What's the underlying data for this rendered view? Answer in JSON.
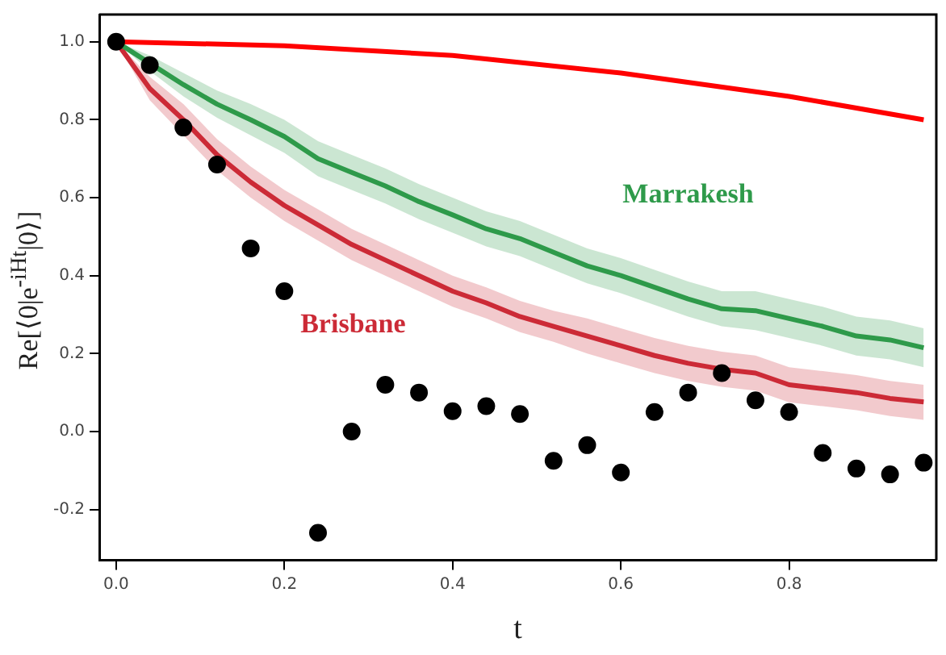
{
  "chart_data": {
    "type": "line",
    "xlabel": "t",
    "ylabel": "Re[⟨0|e$^{-iHt}$|0⟩]",
    "x": [
      0,
      0.04,
      0.08,
      0.12,
      0.16,
      0.2,
      0.24,
      0.28,
      0.32,
      0.36,
      0.4,
      0.44,
      0.48,
      0.52,
      0.56,
      0.6,
      0.64,
      0.68,
      0.72,
      0.76,
      0.8,
      0.84,
      0.88,
      0.92,
      0.96
    ],
    "series": [
      {
        "type": "line",
        "color": "#ff0000",
        "x": [
          0,
          0.2,
          0.4,
          0.6,
          0.8,
          0.96
        ],
        "values": [
          1.0,
          0.99,
          0.965,
          0.92,
          0.86,
          0.8
        ]
      },
      {
        "type": "line",
        "name": "Marrakesh",
        "color": "#2e9a4a",
        "values": [
          1.0,
          0.945,
          0.89,
          0.84,
          0.8,
          0.757,
          0.7,
          0.665,
          0.63,
          0.59,
          0.556,
          0.52,
          0.495,
          0.46,
          0.425,
          0.4,
          0.37,
          0.34,
          0.315,
          0.31,
          0.29,
          0.27,
          0.245,
          0.235,
          0.215
        ],
        "lower": [
          1.0,
          0.925,
          0.86,
          0.805,
          0.76,
          0.715,
          0.655,
          0.62,
          0.585,
          0.545,
          0.51,
          0.475,
          0.45,
          0.415,
          0.38,
          0.355,
          0.325,
          0.295,
          0.27,
          0.26,
          0.24,
          0.22,
          0.195,
          0.185,
          0.165
        ],
        "upper": [
          1.0,
          0.965,
          0.92,
          0.875,
          0.84,
          0.8,
          0.745,
          0.71,
          0.675,
          0.635,
          0.6,
          0.565,
          0.54,
          0.505,
          0.47,
          0.445,
          0.415,
          0.385,
          0.36,
          0.36,
          0.34,
          0.32,
          0.295,
          0.285,
          0.265
        ]
      },
      {
        "type": "line",
        "name": "Brisbane",
        "color": "#cc2a36",
        "values": [
          1.0,
          0.88,
          0.8,
          0.71,
          0.64,
          0.58,
          0.53,
          0.48,
          0.44,
          0.4,
          0.36,
          0.33,
          0.295,
          0.27,
          0.245,
          0.22,
          0.195,
          0.175,
          0.16,
          0.15,
          0.12,
          0.11,
          0.1,
          0.085,
          0.076
        ],
        "lower": [
          1.0,
          0.85,
          0.76,
          0.67,
          0.6,
          0.54,
          0.49,
          0.44,
          0.4,
          0.36,
          0.32,
          0.29,
          0.255,
          0.23,
          0.2,
          0.175,
          0.15,
          0.13,
          0.115,
          0.105,
          0.075,
          0.065,
          0.055,
          0.04,
          0.03
        ],
        "upper": [
          1.0,
          0.91,
          0.84,
          0.75,
          0.68,
          0.62,
          0.57,
          0.52,
          0.48,
          0.44,
          0.4,
          0.37,
          0.335,
          0.31,
          0.29,
          0.265,
          0.24,
          0.22,
          0.205,
          0.195,
          0.165,
          0.155,
          0.145,
          0.13,
          0.12
        ]
      },
      {
        "type": "scatter",
        "color": "#000000",
        "marker": "circle",
        "values": [
          1.0,
          0.94,
          0.78,
          0.685,
          0.47,
          0.36,
          -0.26,
          0.0,
          0.12,
          0.1,
          0.052,
          0.065,
          0.045,
          -0.075,
          -0.035,
          -0.105,
          0.05,
          0.1,
          0.15,
          0.08,
          0.05,
          -0.055,
          -0.095,
          -0.11,
          -0.08
        ]
      }
    ],
    "xlim": [
      -0.02,
      0.975
    ],
    "ylim": [
      -0.33,
      1.07
    ],
    "xticks": [
      {
        "value": 0,
        "label": "0.0"
      },
      0.2,
      0.4,
      0.6,
      0.8
    ],
    "yticks": [
      -0.2,
      {
        "value": 0,
        "label": "0.0"
      },
      0.2,
      0.4,
      0.6,
      0.8,
      {
        "value": 1,
        "label": "1.0"
      }
    ],
    "grid": false,
    "legend": false
  }
}
